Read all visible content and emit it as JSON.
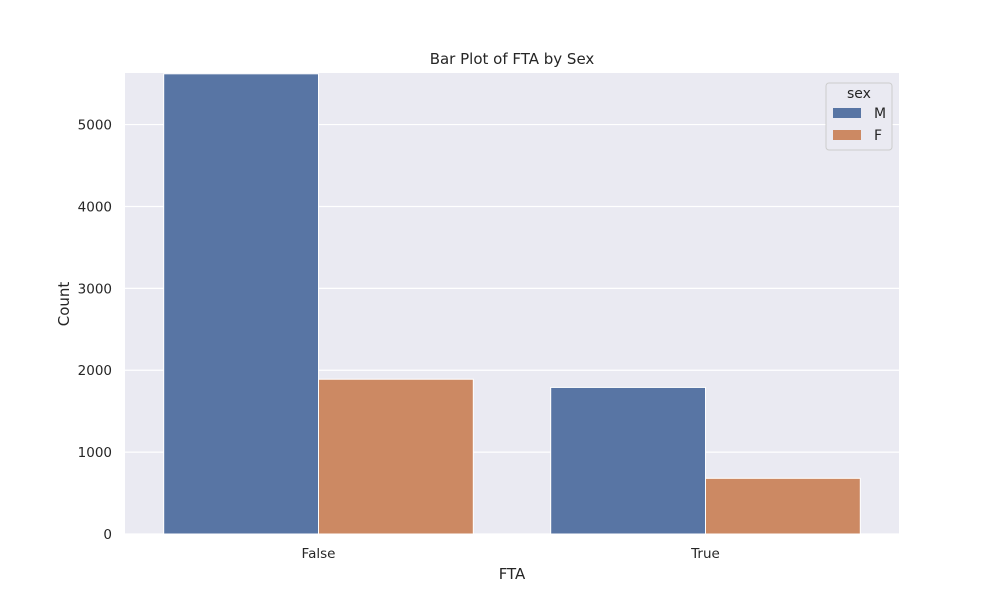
{
  "chart_data": {
    "type": "bar",
    "title": "Bar Plot of FTA by Sex",
    "xlabel": "FTA",
    "ylabel": "Count",
    "categories": [
      "False",
      "True"
    ],
    "series": [
      {
        "name": "M",
        "values": [
          5620,
          1790
        ],
        "color": "#5875a4"
      },
      {
        "name": "F",
        "values": [
          1890,
          680
        ],
        "color": "#cc8963"
      }
    ],
    "ylim": [
      0,
      5630
    ],
    "yticks": [
      0,
      1000,
      2000,
      3000,
      4000,
      5000
    ],
    "grid": true,
    "legend": {
      "title": "sex",
      "placement": "top-right"
    },
    "colors": {
      "plot_background": "#eaeaf2",
      "grid": "#ffffff",
      "bar_edge": "#ffffff"
    }
  }
}
